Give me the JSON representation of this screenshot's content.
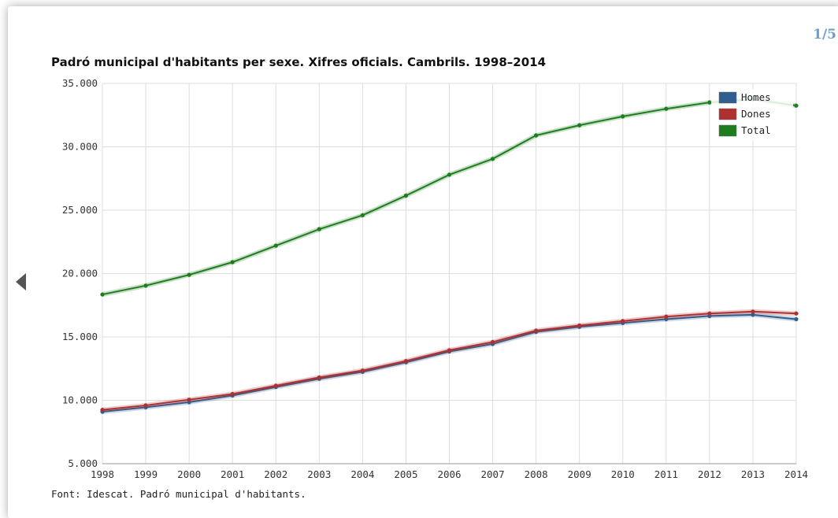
{
  "pager": "1/5",
  "chart_data": {
    "type": "line",
    "title": "Padró municipal d'habitants per sexe. Xifres oficials. Cambrils. 1998–2014",
    "source": "Font: Idescat. Padró municipal d'habitants.",
    "x": [
      "1998",
      "1999",
      "2000",
      "2001",
      "2002",
      "2003",
      "2004",
      "2005",
      "2006",
      "2007",
      "2008",
      "2009",
      "2010",
      "2011",
      "2012",
      "2013",
      "2014"
    ],
    "ylim": [
      5000,
      35000
    ],
    "y_ticks": [
      {
        "value": 35000,
        "label": "35.000"
      },
      {
        "value": 30000,
        "label": "30.000"
      },
      {
        "value": 25000,
        "label": "25.000"
      },
      {
        "value": 20000,
        "label": "20.000"
      },
      {
        "value": 15000,
        "label": "15.000"
      },
      {
        "value": 10000,
        "label": "10.000"
      },
      {
        "value": 5000,
        "label": "5.000"
      }
    ],
    "grid": true,
    "legend_position": "top-right",
    "series": [
      {
        "name": "Homes",
        "color": "#2f5f8f",
        "values": [
          9100,
          9450,
          9850,
          10380,
          11050,
          11700,
          12250,
          13000,
          13850,
          14450,
          15400,
          15800,
          16100,
          16400,
          16650,
          16750,
          16400
        ]
      },
      {
        "name": "Dones",
        "color": "#b03030",
        "values": [
          9250,
          9600,
          10050,
          10500,
          11150,
          11800,
          12350,
          13100,
          13950,
          14600,
          15500,
          15900,
          16250,
          16600,
          16850,
          17000,
          16850
        ]
      },
      {
        "name": "Total",
        "color": "#1e7d1e",
        "values": [
          18350,
          19050,
          19900,
          20900,
          22200,
          23500,
          24600,
          26150,
          27800,
          29050,
          30900,
          31700,
          32400,
          33000,
          33500,
          33750,
          33250
        ]
      }
    ]
  }
}
